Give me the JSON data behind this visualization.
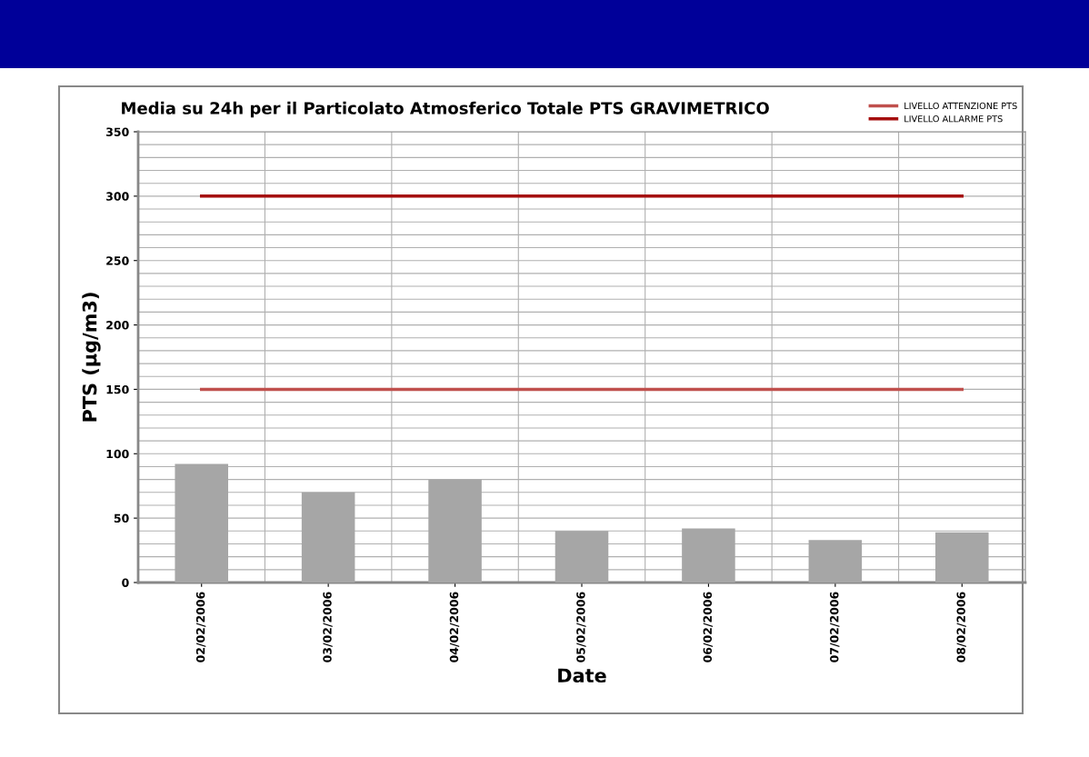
{
  "chart_data": {
    "type": "bar",
    "title": "Media su 24h per il Particolato Atmosferico Totale PTS GRAVIMETRICO",
    "xlabel": "Date",
    "ylabel": "PTS (µg/m3)",
    "categories": [
      "02/02/2006",
      "03/02/2006",
      "04/02/2006",
      "05/02/2006",
      "06/02/2006",
      "07/02/2006",
      "08/02/2006"
    ],
    "series": [
      {
        "color": "#a6a6a6",
        "values": [
          92,
          70,
          80,
          40,
          42,
          33,
          39
        ]
      },
      {
        "type": "line",
        "name": "LIVELLO ATTENZIONE PTS",
        "color": "#c0504d",
        "values": [
          150,
          150,
          150,
          150,
          150,
          150,
          150
        ]
      },
      {
        "type": "line",
        "name": "LIVELLO ALLARME PTS",
        "color": "#a50d0d",
        "values": [
          300,
          300,
          300,
          300,
          300,
          300,
          300
        ]
      }
    ],
    "ylim": [
      0,
      350
    ],
    "yticks": [
      0,
      50,
      100,
      150,
      200,
      250,
      300,
      350
    ],
    "grid": true,
    "legend": "top right"
  }
}
